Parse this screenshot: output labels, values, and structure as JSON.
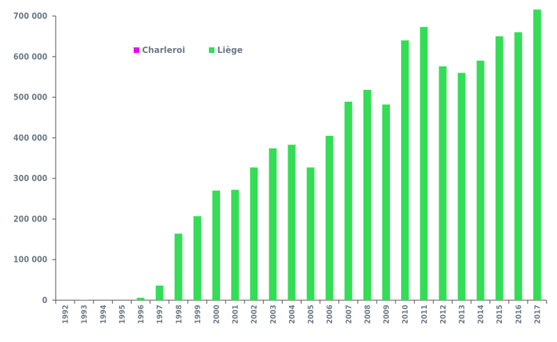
{
  "chart_data": {
    "type": "bar",
    "categories": [
      "1992",
      "1993",
      "1994",
      "1995",
      "1996",
      "1997",
      "1998",
      "1999",
      "2000",
      "2001",
      "2002",
      "2003",
      "2004",
      "2005",
      "2006",
      "2007",
      "2008",
      "2009",
      "2010",
      "2011",
      "2012",
      "2013",
      "2014",
      "2015",
      "2016",
      "2017"
    ],
    "series": [
      {
        "name": "Charleroi",
        "color": "#ee00ee",
        "values": [
          0,
          0,
          0,
          0,
          0,
          0,
          0,
          0,
          0,
          0,
          0,
          0,
          0,
          0,
          0,
          0,
          0,
          0,
          0,
          0,
          0,
          0,
          0,
          0,
          0,
          0
        ]
      },
      {
        "name": "Liège",
        "color": "#33dd55",
        "values": [
          0,
          500,
          0,
          0,
          6000,
          36000,
          164000,
          207000,
          270000,
          272000,
          327000,
          374000,
          383000,
          327000,
          405000,
          489000,
          518000,
          482000,
          640000,
          673000,
          576000,
          560000,
          590000,
          650000,
          660000,
          716000
        ]
      }
    ],
    "ylim": [
      0,
      700000
    ],
    "yticks": [
      0,
      100000,
      200000,
      300000,
      400000,
      500000,
      600000,
      700000
    ],
    "ytick_labels": [
      "0",
      "100 000",
      "200 000",
      "300 000",
      "400 000",
      "500 000",
      "600 000",
      "700 000"
    ],
    "title": "",
    "xlabel": "",
    "ylabel": "",
    "legend_position": "top-left",
    "grid": false
  }
}
